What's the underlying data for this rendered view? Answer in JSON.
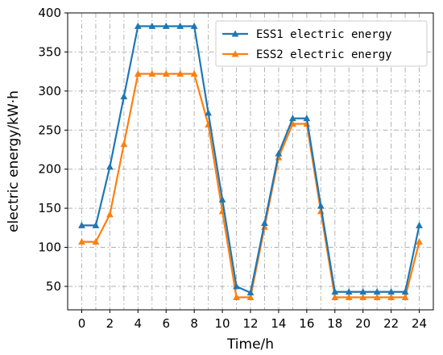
{
  "chart_data": {
    "type": "line",
    "title": "",
    "xlabel": "Time/h",
    "ylabel": "electric energy/kW·h",
    "xlim": [
      -1,
      25
    ],
    "ylim": [
      20,
      400
    ],
    "x_ticks": [
      0,
      2,
      4,
      6,
      8,
      10,
      12,
      14,
      16,
      18,
      20,
      22,
      24
    ],
    "y_ticks": [
      50,
      100,
      150,
      200,
      250,
      300,
      350,
      400
    ],
    "grid": true,
    "legend_position": "top-right",
    "x": [
      0,
      1,
      2,
      3,
      4,
      5,
      6,
      7,
      8,
      9,
      10,
      11,
      12,
      13,
      14,
      15,
      16,
      17,
      18,
      19,
      20,
      21,
      22,
      23,
      24
    ],
    "series": [
      {
        "name": "ESS1 electric energy",
        "color": "#1f77b4",
        "marker": "triangle-up",
        "values": [
          128,
          128,
          203,
          293,
          383,
          383,
          383,
          383,
          383,
          272,
          161,
          50,
          42,
          131,
          220,
          265,
          265,
          153,
          43,
          43,
          43,
          43,
          43,
          43,
          128
        ]
      },
      {
        "name": "ESS2 electric energy",
        "color": "#ff7f0e",
        "marker": "triangle-up",
        "values": [
          107,
          107,
          142,
          232,
          322,
          322,
          322,
          322,
          322,
          257,
          146,
          36,
          36,
          126,
          215,
          258,
          258,
          146,
          36,
          36,
          36,
          36,
          36,
          36,
          107
        ]
      }
    ]
  }
}
